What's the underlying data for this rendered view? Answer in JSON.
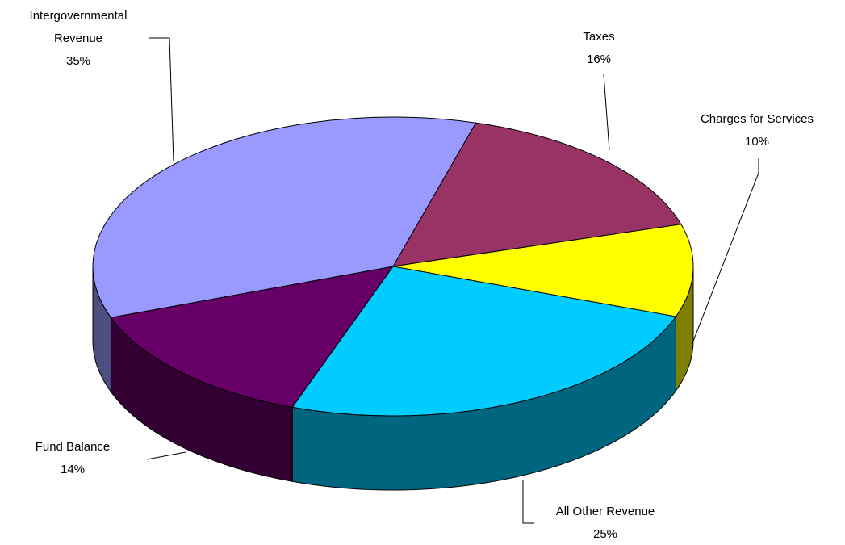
{
  "chart_data": {
    "type": "pie",
    "categories": [
      "Taxes",
      "Charges for Services",
      "All Other Revenue",
      "Fund Balance",
      "Intergovernmental Revenue"
    ],
    "values": [
      16,
      10,
      25,
      14,
      35
    ],
    "value_labels": [
      "16%",
      "10%",
      "25%",
      "14%",
      "35%"
    ],
    "colors": [
      "#993366",
      "#ffff00",
      "#00ccff",
      "#660066",
      "#9999ff"
    ]
  }
}
